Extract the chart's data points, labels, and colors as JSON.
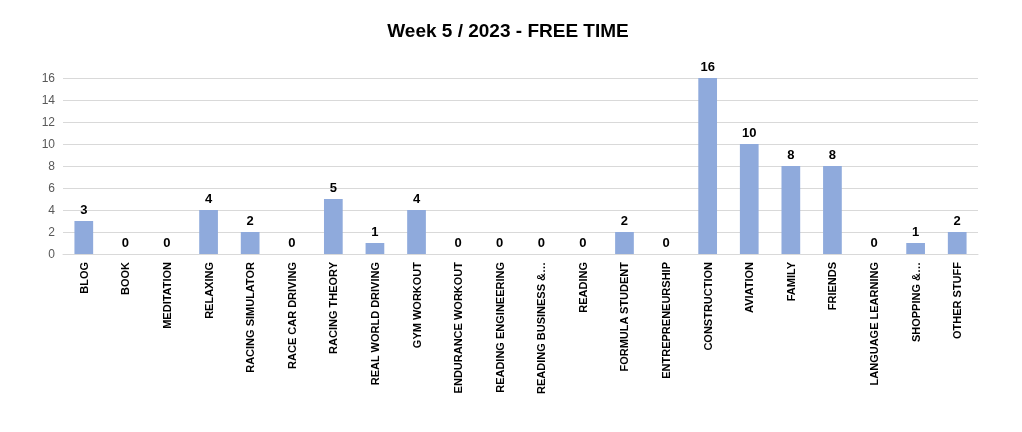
{
  "chart_data": {
    "type": "bar",
    "title": "Week 5 / 2023 - FREE TIME",
    "categories": [
      "BLOG",
      "BOOK",
      "MEDITATION",
      "RELAXING",
      "RACING SIMULATOR",
      "RACE CAR DRIVING",
      "RACING THEORY",
      "REAL WORLD DRIVING",
      "GYM WORKOUT",
      "ENDURANCE WORKOUT",
      "READING ENGINEERING",
      "READING BUSINESS &…",
      "READING",
      "FORMULA STUDENT",
      "ENTREPRENEURSHIP",
      "CONSTRUCTION",
      "AVIATION",
      "FAMILY",
      "FRIENDS",
      "LANGUAGE LEARNING",
      "SHOPPING &…",
      "OTHER STUFF"
    ],
    "values": [
      3,
      0,
      0,
      4,
      2,
      0,
      5,
      1,
      4,
      0,
      0,
      0,
      0,
      2,
      0,
      16,
      10,
      8,
      8,
      0,
      1,
      2
    ],
    "color": "#8faadc",
    "ylim": [
      0,
      16
    ],
    "yticks": [
      0,
      2,
      4,
      6,
      8,
      10,
      12,
      14,
      16
    ],
    "grid": "y",
    "data_labels": true
  }
}
